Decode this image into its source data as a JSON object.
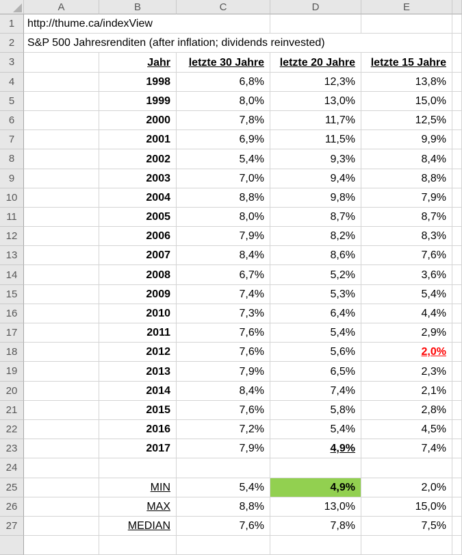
{
  "grid": {
    "column_headers": [
      "A",
      "B",
      "C",
      "D",
      "E"
    ],
    "row_count": 27
  },
  "cells": {
    "A1": "http://thume.ca/indexView",
    "A2": "S&P 500 Jahresrenditen (after inflation; dividends reinvested)"
  },
  "table": {
    "columns": [
      "Jahr",
      "letzte 30 Jahre",
      "letzte 20 Jahre",
      "letzte 15 Jahre"
    ],
    "rows": [
      {
        "jahr": "1998",
        "j30": "6,8%",
        "j20": "12,3%",
        "j15": "13,8%"
      },
      {
        "jahr": "1999",
        "j30": "8,0%",
        "j20": "13,0%",
        "j15": "15,0%"
      },
      {
        "jahr": "2000",
        "j30": "7,8%",
        "j20": "11,7%",
        "j15": "12,5%"
      },
      {
        "jahr": "2001",
        "j30": "6,9%",
        "j20": "11,5%",
        "j15": "9,9%"
      },
      {
        "jahr": "2002",
        "j30": "5,4%",
        "j20": "9,3%",
        "j15": "8,4%"
      },
      {
        "jahr": "2003",
        "j30": "7,0%",
        "j20": "9,4%",
        "j15": "8,8%"
      },
      {
        "jahr": "2004",
        "j30": "8,8%",
        "j20": "9,8%",
        "j15": "7,9%"
      },
      {
        "jahr": "2005",
        "j30": "8,0%",
        "j20": "8,7%",
        "j15": "8,7%"
      },
      {
        "jahr": "2006",
        "j30": "7,9%",
        "j20": "8,2%",
        "j15": "8,3%"
      },
      {
        "jahr": "2007",
        "j30": "8,4%",
        "j20": "8,6%",
        "j15": "7,6%"
      },
      {
        "jahr": "2008",
        "j30": "6,7%",
        "j20": "5,2%",
        "j15": "3,6%"
      },
      {
        "jahr": "2009",
        "j30": "7,4%",
        "j20": "5,3%",
        "j15": "5,4%"
      },
      {
        "jahr": "2010",
        "j30": "7,3%",
        "j20": "6,4%",
        "j15": "4,4%"
      },
      {
        "jahr": "2011",
        "j30": "7,6%",
        "j20": "5,4%",
        "j15": "2,9%"
      },
      {
        "jahr": "2012",
        "j30": "7,6%",
        "j20": "5,6%",
        "j15": "2,0%",
        "j15_style": "red-bold-underline"
      },
      {
        "jahr": "2013",
        "j30": "7,9%",
        "j20": "6,5%",
        "j15": "2,3%"
      },
      {
        "jahr": "2014",
        "j30": "8,4%",
        "j20": "7,4%",
        "j15": "2,1%"
      },
      {
        "jahr": "2015",
        "j30": "7,6%",
        "j20": "5,8%",
        "j15": "2,8%"
      },
      {
        "jahr": "2016",
        "j30": "7,2%",
        "j20": "5,4%",
        "j15": "4,5%"
      },
      {
        "jahr": "2017",
        "j30": "7,9%",
        "j20": "4,9%",
        "j15": "7,4%",
        "j20_style": "bold-underline"
      }
    ],
    "summary": [
      {
        "label": "MIN",
        "j30": "5,4%",
        "j20": "4,9%",
        "j15": "2,0%",
        "j20_style": "green-fill-bold"
      },
      {
        "label": "MAX",
        "j30": "8,8%",
        "j20": "13,0%",
        "j15": "15,0%"
      },
      {
        "label": "MEDIAN",
        "j30": "7,6%",
        "j20": "7,8%",
        "j15": "7,5%"
      }
    ]
  },
  "colors": {
    "green_fill": "#92D050",
    "red_text": "#FF0000",
    "grid_line": "#D4D4D4",
    "header_bg": "#E7E7E7",
    "header_text": "#565656"
  }
}
